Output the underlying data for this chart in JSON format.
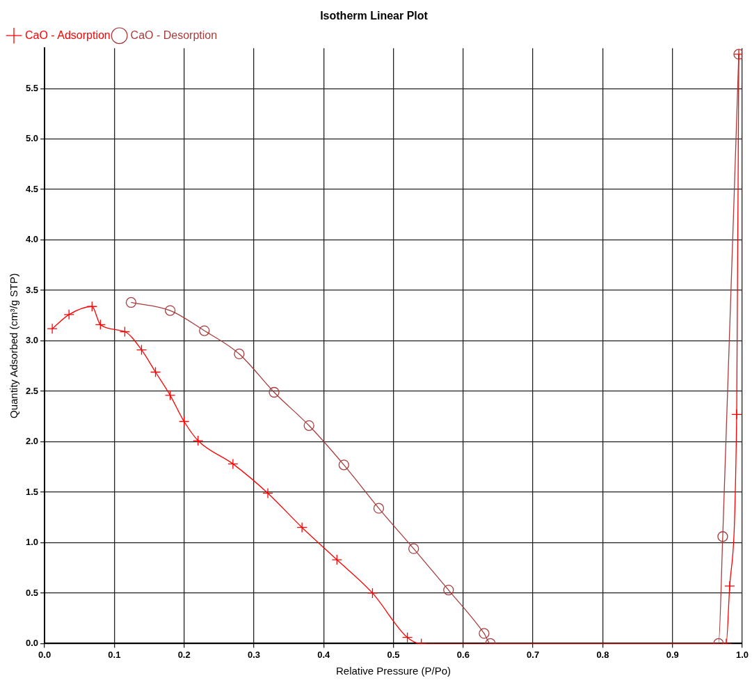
{
  "chart_data": {
    "type": "line",
    "title": "Isotherm Linear Plot",
    "xlabel": "Relative Pressure (P/Po)",
    "ylabel": "Quantity Adsorbed (cm³/g STP)",
    "series": [
      {
        "name": "CaO - Adsorption",
        "color": "#ff0000",
        "marker": "cross",
        "x": [
          0.011,
          0.035,
          0.068,
          0.08,
          0.115,
          0.139,
          0.159,
          0.18,
          0.2,
          0.22,
          0.27,
          0.32,
          0.369,
          0.419,
          0.47,
          0.52,
          0.54,
          0.977,
          0.982,
          0.992,
          0.995
        ],
        "values": [
          3.12,
          3.26,
          3.34,
          3.16,
          3.09,
          2.91,
          2.69,
          2.46,
          2.2,
          2.01,
          1.78,
          1.49,
          1.15,
          0.83,
          0.5,
          0.06,
          0,
          0,
          0.57,
          2.27,
          5.84
        ]
      },
      {
        "name": "CaO - Desorption",
        "color": "#a83c3c",
        "marker": "circle",
        "x": [
          0.124,
          0.18,
          0.229,
          0.279,
          0.329,
          0.379,
          0.429,
          0.479,
          0.529,
          0.579,
          0.63,
          0.639,
          0.966,
          0.972,
          0.995
        ],
        "values": [
          3.38,
          3.3,
          3.1,
          2.87,
          2.49,
          2.16,
          1.77,
          1.34,
          0.94,
          0.53,
          0.1,
          0,
          0,
          1.06,
          5.84
        ]
      }
    ],
    "xlim": [
      0,
      1
    ],
    "xticks": [
      {
        "value": 0,
        "label": "0.0"
      },
      0.1,
      0.2,
      0.3,
      0.4,
      0.5,
      0.6,
      0.7,
      0.8,
      0.9,
      {
        "value": 1,
        "label": "1.0"
      }
    ],
    "ylim": [
      0,
      5.9
    ],
    "yticks": [
      {
        "value": 0,
        "label": "0.0"
      },
      0.5,
      {
        "value": 1,
        "label": "1.0"
      },
      1.5,
      {
        "value": 2,
        "label": "2.0"
      },
      2.5,
      {
        "value": 3,
        "label": "3.0"
      },
      3.5,
      {
        "value": 4,
        "label": "4.0"
      },
      4.5,
      {
        "value": 5,
        "label": "5.0"
      },
      5.5
    ],
    "grid": true,
    "legend": "top left",
    "line_style": "solid"
  }
}
